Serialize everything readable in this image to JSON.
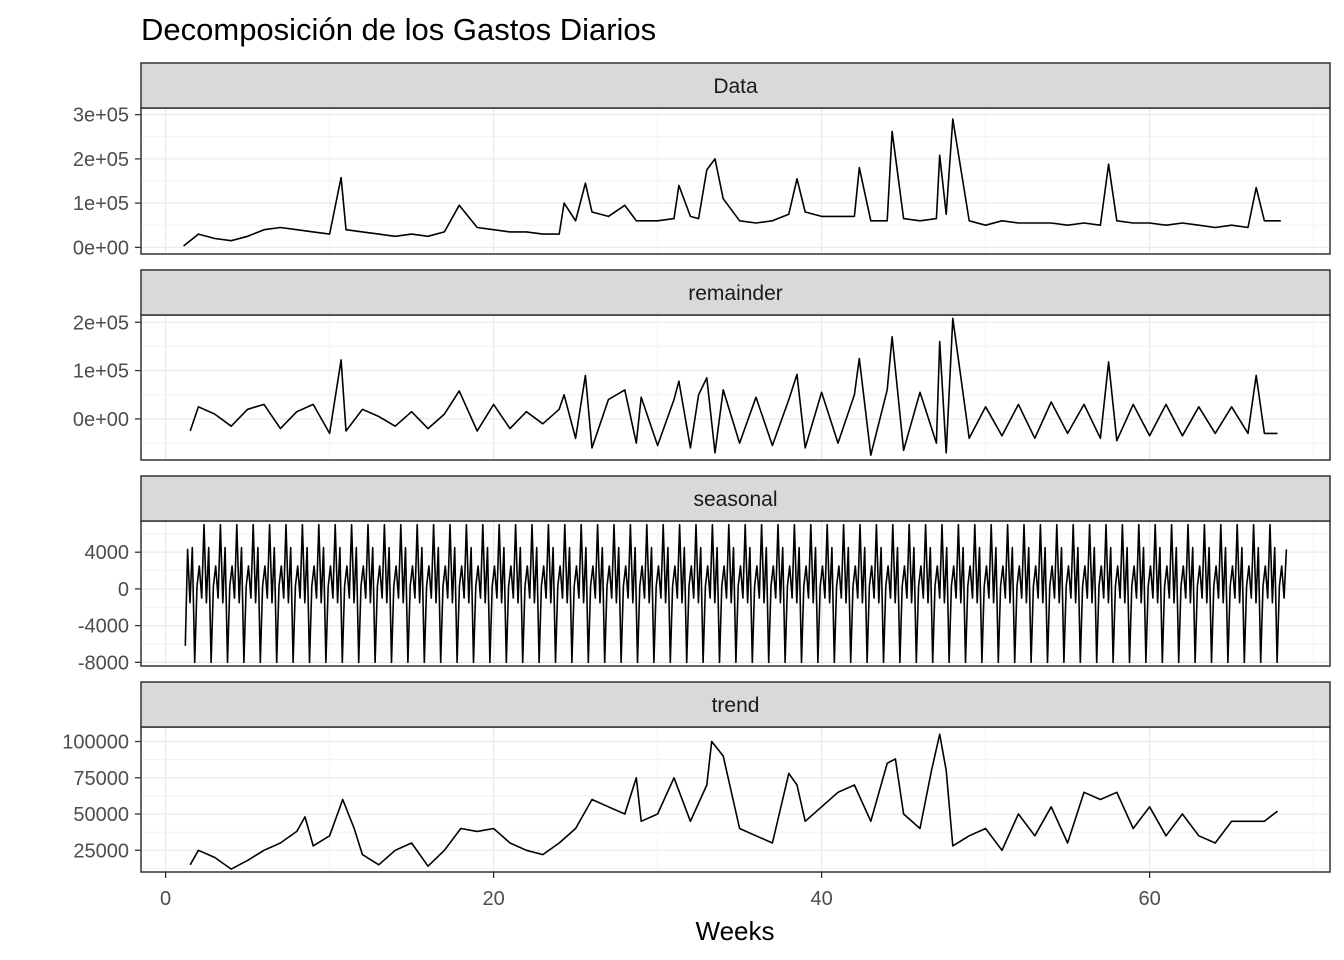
{
  "chart_data": {
    "type": "line",
    "title": "Decomposición de los Gastos Diarios",
    "xlabel": "Weeks",
    "x_range": [
      -1.5,
      71
    ],
    "x_ticks": [
      0,
      20,
      40,
      60
    ],
    "x_tick_labels": [
      "0",
      "20",
      "40",
      "60"
    ],
    "grid": true,
    "panels": [
      {
        "name": "Data",
        "ylim": [
          -15000,
          315000
        ],
        "y_ticks": [
          0,
          100000,
          200000,
          300000
        ],
        "y_tick_labels": [
          "0e+00",
          "1e+05",
          "2e+05",
          "3e+05"
        ],
        "x": [
          1.1,
          2,
          3,
          4,
          5,
          6,
          7,
          8,
          9,
          10,
          10.7,
          11,
          12,
          13,
          14,
          15,
          16,
          17,
          17.9,
          19,
          20,
          21,
          22,
          23,
          24,
          24.3,
          25,
          25.6,
          26,
          27,
          28,
          28.7,
          29,
          30,
          31,
          31.3,
          32,
          32.5,
          33,
          33.5,
          34,
          35,
          36,
          37,
          38,
          38.5,
          39,
          40,
          41,
          42,
          42.3,
          43,
          44,
          44.3,
          45,
          46,
          47,
          47.2,
          47.6,
          48,
          49,
          50,
          51,
          52,
          53,
          54,
          55,
          56,
          57,
          57.5,
          58,
          59,
          60,
          61,
          62,
          63,
          64,
          65,
          66,
          66.5,
          67,
          68
        ],
        "values": [
          3000,
          30000,
          20000,
          15000,
          25000,
          40000,
          45000,
          40000,
          35000,
          30000,
          158000,
          40000,
          35000,
          30000,
          25000,
          30000,
          25000,
          35000,
          95000,
          45000,
          40000,
          35000,
          35000,
          30000,
          30000,
          100000,
          60000,
          145000,
          80000,
          70000,
          95000,
          60000,
          60000,
          60000,
          65000,
          140000,
          70000,
          65000,
          175000,
          200000,
          110000,
          60000,
          55000,
          60000,
          75000,
          155000,
          80000,
          70000,
          70000,
          70000,
          180000,
          60000,
          60000,
          262000,
          65000,
          60000,
          65000,
          208000,
          75000,
          290000,
          60000,
          50000,
          60000,
          55000,
          55000,
          55000,
          50000,
          55000,
          50000,
          188000,
          60000,
          55000,
          55000,
          50000,
          55000,
          50000,
          45000,
          50000,
          45000,
          135000,
          60000,
          60000
        ]
      },
      {
        "name": "remainder",
        "ylim": [
          -85000,
          215000
        ],
        "y_ticks": [
          0,
          100000,
          200000
        ],
        "y_tick_labels": [
          "0e+00",
          "1e+05",
          "2e+05"
        ],
        "x": [
          1.5,
          2,
          3,
          4,
          5,
          6,
          7,
          8,
          9,
          10,
          10.7,
          11,
          12,
          13,
          14,
          15,
          16,
          17,
          17.9,
          19,
          20,
          21,
          22,
          23,
          24,
          24.3,
          25,
          25.6,
          26,
          27,
          28,
          28.7,
          29,
          30,
          31,
          31.3,
          32,
          32.5,
          33,
          33.5,
          34,
          35,
          36,
          37,
          38,
          38.5,
          39,
          40,
          41,
          42,
          42.3,
          43,
          44,
          44.3,
          45,
          46,
          47,
          47.2,
          47.6,
          48,
          49,
          50,
          51,
          52,
          53,
          54,
          55,
          56,
          57,
          57.5,
          58,
          59,
          60,
          61,
          62,
          63,
          64,
          65,
          66,
          66.5,
          67,
          67.8
        ],
        "values": [
          -25000,
          25000,
          10000,
          -15000,
          20000,
          30000,
          -20000,
          15000,
          30000,
          -30000,
          122000,
          -25000,
          20000,
          5000,
          -15000,
          15000,
          -20000,
          10000,
          58000,
          -25000,
          30000,
          -20000,
          15000,
          -10000,
          20000,
          50000,
          -40000,
          90000,
          -60000,
          40000,
          60000,
          -50000,
          45000,
          -55000,
          40000,
          78000,
          -60000,
          50000,
          85000,
          -70000,
          60000,
          -50000,
          45000,
          -55000,
          40000,
          92000,
          -60000,
          55000,
          -50000,
          50000,
          125000,
          -75000,
          60000,
          170000,
          -65000,
          55000,
          -50000,
          160000,
          -70000,
          208000,
          -40000,
          25000,
          -35000,
          30000,
          -40000,
          35000,
          -30000,
          30000,
          -40000,
          118000,
          -45000,
          30000,
          -35000,
          30000,
          -35000,
          25000,
          -30000,
          25000,
          -30000,
          90000,
          -30000,
          -30000
        ]
      },
      {
        "name": "seasonal",
        "ylim": [
          -8400,
          7400
        ],
        "y_ticks": [
          -8000,
          -4000,
          0,
          4000
        ],
        "y_tick_labels": [
          "-8000",
          "-4000",
          "0",
          "4000"
        ],
        "x_start": 1.2,
        "x_end": 68.3,
        "pattern": [
          -1000,
          7000,
          -1500,
          4500,
          -8000,
          300,
          2500
        ],
        "extremes_at_start": [
          -6200,
          4300
        ]
      },
      {
        "name": "trend",
        "ylim": [
          10000,
          110000
        ],
        "y_ticks": [
          25000,
          50000,
          75000,
          100000
        ],
        "y_tick_labels": [
          "25000",
          "50000",
          "75000",
          "100000"
        ],
        "x": [
          1.5,
          2,
          3,
          4,
          5,
          6,
          7,
          8,
          8.5,
          9,
          10,
          10.8,
          11.5,
          12,
          13,
          14,
          15,
          16,
          17,
          18,
          19,
          20,
          21,
          22,
          23,
          24,
          25,
          26,
          27,
          28,
          28.7,
          29,
          30,
          31,
          32,
          33,
          33.3,
          34,
          35,
          36,
          37,
          38,
          38.5,
          39,
          40,
          41,
          42,
          43,
          44,
          44.5,
          45,
          46,
          46.7,
          47.2,
          47.6,
          48,
          49,
          50,
          51,
          52,
          53,
          54,
          55,
          56,
          57,
          58,
          59,
          60,
          61,
          62,
          63,
          64,
          65,
          66,
          67,
          67.8
        ],
        "values": [
          15000,
          25000,
          20000,
          12000,
          18000,
          25000,
          30000,
          38000,
          48000,
          28000,
          35000,
          60000,
          40000,
          22000,
          15000,
          25000,
          30000,
          14000,
          25000,
          40000,
          38000,
          40000,
          30000,
          25000,
          22000,
          30000,
          40000,
          60000,
          55000,
          50000,
          75000,
          45000,
          50000,
          75000,
          45000,
          70000,
          100000,
          90000,
          40000,
          35000,
          30000,
          78000,
          70000,
          45000,
          55000,
          65000,
          70000,
          45000,
          85000,
          88000,
          50000,
          40000,
          80000,
          105000,
          80000,
          28000,
          35000,
          40000,
          25000,
          50000,
          35000,
          55000,
          30000,
          65000,
          60000,
          65000,
          40000,
          55000,
          35000,
          50000,
          35000,
          30000,
          45000,
          45000,
          45000,
          52000
        ]
      }
    ]
  }
}
